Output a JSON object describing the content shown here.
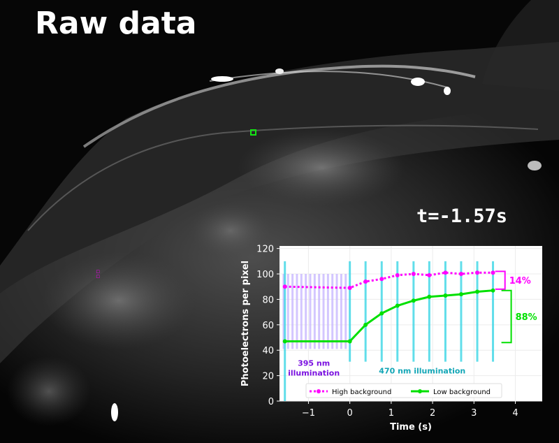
{
  "title": "Raw data",
  "timestamp": "t=-1.57s",
  "colors": {
    "high": "#ff00ff",
    "low": "#00e000",
    "violet": "#7a10e0",
    "cyan": "#3ad6e6",
    "lavender": "#c9b8ff",
    "roi": "#14e414"
  },
  "chart_data": {
    "type": "line",
    "xlabel": "Time (s)",
    "ylabel": "Photoelectrons per pixel",
    "xlim": [
      -1.7,
      4.65
    ],
    "ylim": [
      0,
      122
    ],
    "xticks": [
      -1,
      0,
      1,
      2,
      3,
      4
    ],
    "xtick_labels": [
      "−1",
      "0",
      "1",
      "2",
      "3",
      "4"
    ],
    "yticks": [
      0,
      20,
      40,
      60,
      80,
      100,
      120
    ],
    "grid": true,
    "legend_position": "bottom-center",
    "series": [
      {
        "name": "High background",
        "style": "dotted",
        "color": "#ff00ff",
        "x": [
          -1.57,
          0,
          0.38,
          0.77,
          1.15,
          1.54,
          1.92,
          2.31,
          2.69,
          3.08,
          3.46
        ],
        "y": [
          90,
          89,
          94,
          96,
          99,
          100,
          99,
          101,
          100,
          101,
          101
        ]
      },
      {
        "name": "Low background",
        "style": "solid",
        "color": "#00e000",
        "x": [
          -1.57,
          0,
          0.38,
          0.77,
          1.15,
          1.54,
          1.92,
          2.31,
          2.69,
          3.08,
          3.46
        ],
        "y": [
          47,
          47,
          60,
          69,
          75,
          79,
          82,
          83,
          84,
          86,
          87
        ]
      }
    ],
    "violet_pulses": {
      "x_start": -1.6,
      "x_end": -0.1,
      "count": 15,
      "y_range": [
        41,
        100
      ]
    },
    "cyan_pulses": {
      "x": [
        -1.57,
        0,
        0.38,
        0.77,
        1.15,
        1.54,
        1.92,
        2.31,
        2.69,
        3.08,
        3.46
      ],
      "y_range": [
        31,
        110
      ]
    },
    "annotations": [
      {
        "text": "395 nm",
        "line2": "illumination",
        "x": -0.87,
        "y": 30,
        "color": "#7a10e0"
      },
      {
        "text": "470 nm illumination",
        "x": 1.75,
        "y": 24,
        "color": "#12a6b6"
      }
    ],
    "brackets": [
      {
        "label": "14%",
        "y_low": 88,
        "y_high": 102,
        "x": 3.75,
        "color": "#ff00ff"
      },
      {
        "label": "88%",
        "y_low": 46,
        "y_high": 87,
        "x": 3.9,
        "color": "#00e000"
      }
    ]
  }
}
